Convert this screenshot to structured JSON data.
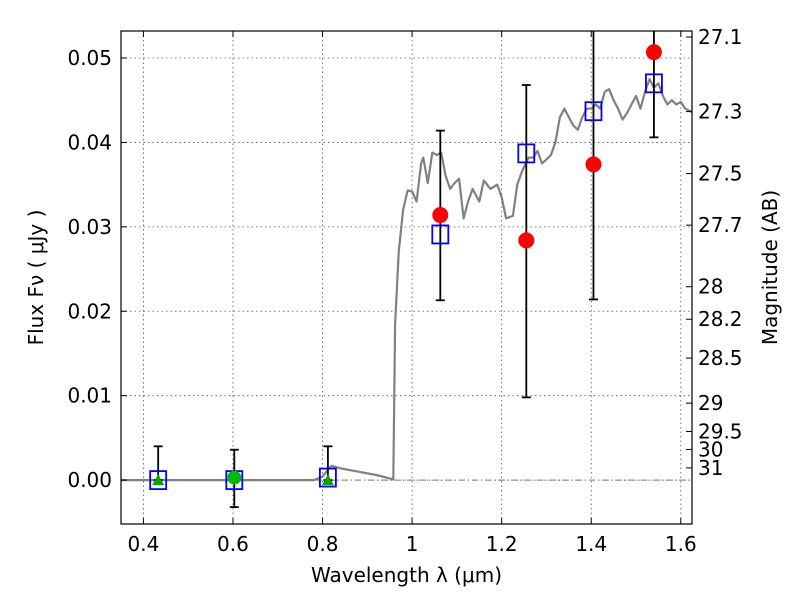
{
  "chart_data": {
    "type": "scatter",
    "xlabel": "Wavelength  λ (μm)",
    "ylabel": "Flux  Fν  ( μJy )",
    "ylabel_right": "Magnitude (AB)",
    "xlim": [
      0.35,
      1.625
    ],
    "ylim": [
      -0.0052,
      0.0532
    ],
    "grid": true,
    "x_ticks": [
      {
        "value": 0.4,
        "label": "0.4"
      },
      {
        "value": 0.6,
        "label": "0.6"
      },
      {
        "value": 0.8,
        "label": "0.8"
      },
      {
        "value": 1.0,
        "label": "1"
      },
      {
        "value": 1.2,
        "label": "1.2"
      },
      {
        "value": 1.4,
        "label": "1.4"
      },
      {
        "value": 1.6,
        "label": "1.6"
      }
    ],
    "y_ticks": [
      {
        "value": 0.0,
        "label": "0.00"
      },
      {
        "value": 0.01,
        "label": "0.01"
      },
      {
        "value": 0.02,
        "label": "0.02"
      },
      {
        "value": 0.03,
        "label": "0.03"
      },
      {
        "value": 0.04,
        "label": "0.04"
      },
      {
        "value": 0.05,
        "label": "0.05"
      }
    ],
    "right_ticks": [
      {
        "value": 27.1,
        "label": "27.1"
      },
      {
        "value": 27.3,
        "label": "27.3"
      },
      {
        "value": 27.5,
        "label": "27.5"
      },
      {
        "value": 27.7,
        "label": "27.7"
      },
      {
        "value": 28,
        "label": "28"
      },
      {
        "value": 28.2,
        "label": "28.2"
      },
      {
        "value": 28.5,
        "label": "28.5"
      },
      {
        "value": 29,
        "label": "29"
      },
      {
        "value": 29.5,
        "label": "29.5"
      },
      {
        "value": 30,
        "label": "30"
      },
      {
        "value": 31,
        "label": "31"
      }
    ],
    "zero_line": 0.0,
    "template_spectrum": {
      "color": "#808080",
      "points": [
        [
          0.35,
          0.0
        ],
        [
          0.6,
          0.0
        ],
        [
          0.7,
          0.0
        ],
        [
          0.78,
          0.0
        ],
        [
          0.8,
          0.0004
        ],
        [
          0.81,
          0.0011
        ],
        [
          0.82,
          0.0017
        ],
        [
          0.84,
          0.0014
        ],
        [
          0.88,
          0.001
        ],
        [
          0.92,
          0.0006
        ],
        [
          0.95,
          0.0002
        ],
        [
          0.958,
          0.0001
        ],
        [
          0.962,
          0.0185
        ],
        [
          0.97,
          0.027
        ],
        [
          0.98,
          0.032
        ],
        [
          0.99,
          0.0343
        ],
        [
          1.0,
          0.0342
        ],
        [
          1.01,
          0.033
        ],
        [
          1.02,
          0.0375
        ],
        [
          1.025,
          0.0382
        ],
        [
          1.035,
          0.0352
        ],
        [
          1.045,
          0.0388
        ],
        [
          1.055,
          0.0385
        ],
        [
          1.065,
          0.0388
        ],
        [
          1.075,
          0.036
        ],
        [
          1.085,
          0.0345
        ],
        [
          1.095,
          0.0352
        ],
        [
          1.105,
          0.0357
        ],
        [
          1.115,
          0.031
        ],
        [
          1.125,
          0.033
        ],
        [
          1.135,
          0.0345
        ],
        [
          1.15,
          0.033
        ],
        [
          1.16,
          0.0355
        ],
        [
          1.175,
          0.0345
        ],
        [
          1.19,
          0.035
        ],
        [
          1.2,
          0.0335
        ],
        [
          1.21,
          0.031
        ],
        [
          1.225,
          0.0313
        ],
        [
          1.235,
          0.035
        ],
        [
          1.245,
          0.0365
        ],
        [
          1.26,
          0.0382
        ],
        [
          1.27,
          0.0382
        ],
        [
          1.28,
          0.039
        ],
        [
          1.29,
          0.0375
        ],
        [
          1.3,
          0.038
        ],
        [
          1.31,
          0.0385
        ],
        [
          1.32,
          0.04
        ],
        [
          1.33,
          0.043
        ],
        [
          1.34,
          0.044
        ],
        [
          1.35,
          0.043
        ],
        [
          1.36,
          0.042
        ],
        [
          1.37,
          0.0415
        ],
        [
          1.38,
          0.043
        ],
        [
          1.39,
          0.044
        ],
        [
          1.4,
          0.044
        ],
        [
          1.41,
          0.0445
        ],
        [
          1.42,
          0.044
        ],
        [
          1.43,
          0.046
        ],
        [
          1.44,
          0.0463
        ],
        [
          1.45,
          0.045
        ],
        [
          1.46,
          0.044
        ],
        [
          1.47,
          0.0427
        ],
        [
          1.48,
          0.0435
        ],
        [
          1.49,
          0.0445
        ],
        [
          1.5,
          0.0455
        ],
        [
          1.51,
          0.044
        ],
        [
          1.52,
          0.046
        ],
        [
          1.53,
          0.0475
        ],
        [
          1.54,
          0.0465
        ],
        [
          1.55,
          0.047
        ],
        [
          1.56,
          0.0455
        ],
        [
          1.57,
          0.0445
        ],
        [
          1.58,
          0.045
        ],
        [
          1.59,
          0.0445
        ],
        [
          1.6,
          0.0448
        ],
        [
          1.61,
          0.044
        ],
        [
          1.625,
          0.0436
        ]
      ]
    },
    "series": [
      {
        "marker": "circle",
        "color": "#ff0000",
        "points": [
          {
            "x": 1.063,
            "y": 0.0314
          },
          {
            "x": 1.255,
            "y": 0.0284
          },
          {
            "x": 1.405,
            "y": 0.0374
          },
          {
            "x": 1.54,
            "y": 0.0507
          }
        ]
      },
      {
        "marker": "open-square",
        "color": "#0000ff",
        "points": [
          {
            "x": 0.433,
            "y": 0.0
          },
          {
            "x": 0.603,
            "y": 0.0
          },
          {
            "x": 0.812,
            "y": 0.0003
          },
          {
            "x": 1.063,
            "y": 0.0291
          },
          {
            "x": 1.255,
            "y": 0.0387
          },
          {
            "x": 1.405,
            "y": 0.0437
          },
          {
            "x": 1.54,
            "y": 0.047
          }
        ]
      },
      {
        "marker": "triangle",
        "color": "#00aa00",
        "points": [
          {
            "x": 0.433,
            "y": 0.0
          },
          {
            "x": 0.812,
            "y": 0.0
          }
        ]
      },
      {
        "marker": "circle-small",
        "color": "#00bb00",
        "points": [
          {
            "x": 0.603,
            "y": 0.0003
          }
        ]
      }
    ],
    "error_bars": [
      {
        "x": 0.433,
        "low": 0.0,
        "high": 0.004
      },
      {
        "x": 0.603,
        "low": -0.0032,
        "high": 0.0036
      },
      {
        "x": 0.812,
        "low": 0.0,
        "high": 0.004
      },
      {
        "x": 1.063,
        "low": 0.0213,
        "high": 0.0414
      },
      {
        "x": 1.255,
        "low": 0.0098,
        "high": 0.0468
      },
      {
        "x": 1.405,
        "low": 0.0214,
        "high": 0.0532
      },
      {
        "x": 1.54,
        "low": 0.0406,
        "high": 0.0532
      }
    ]
  }
}
